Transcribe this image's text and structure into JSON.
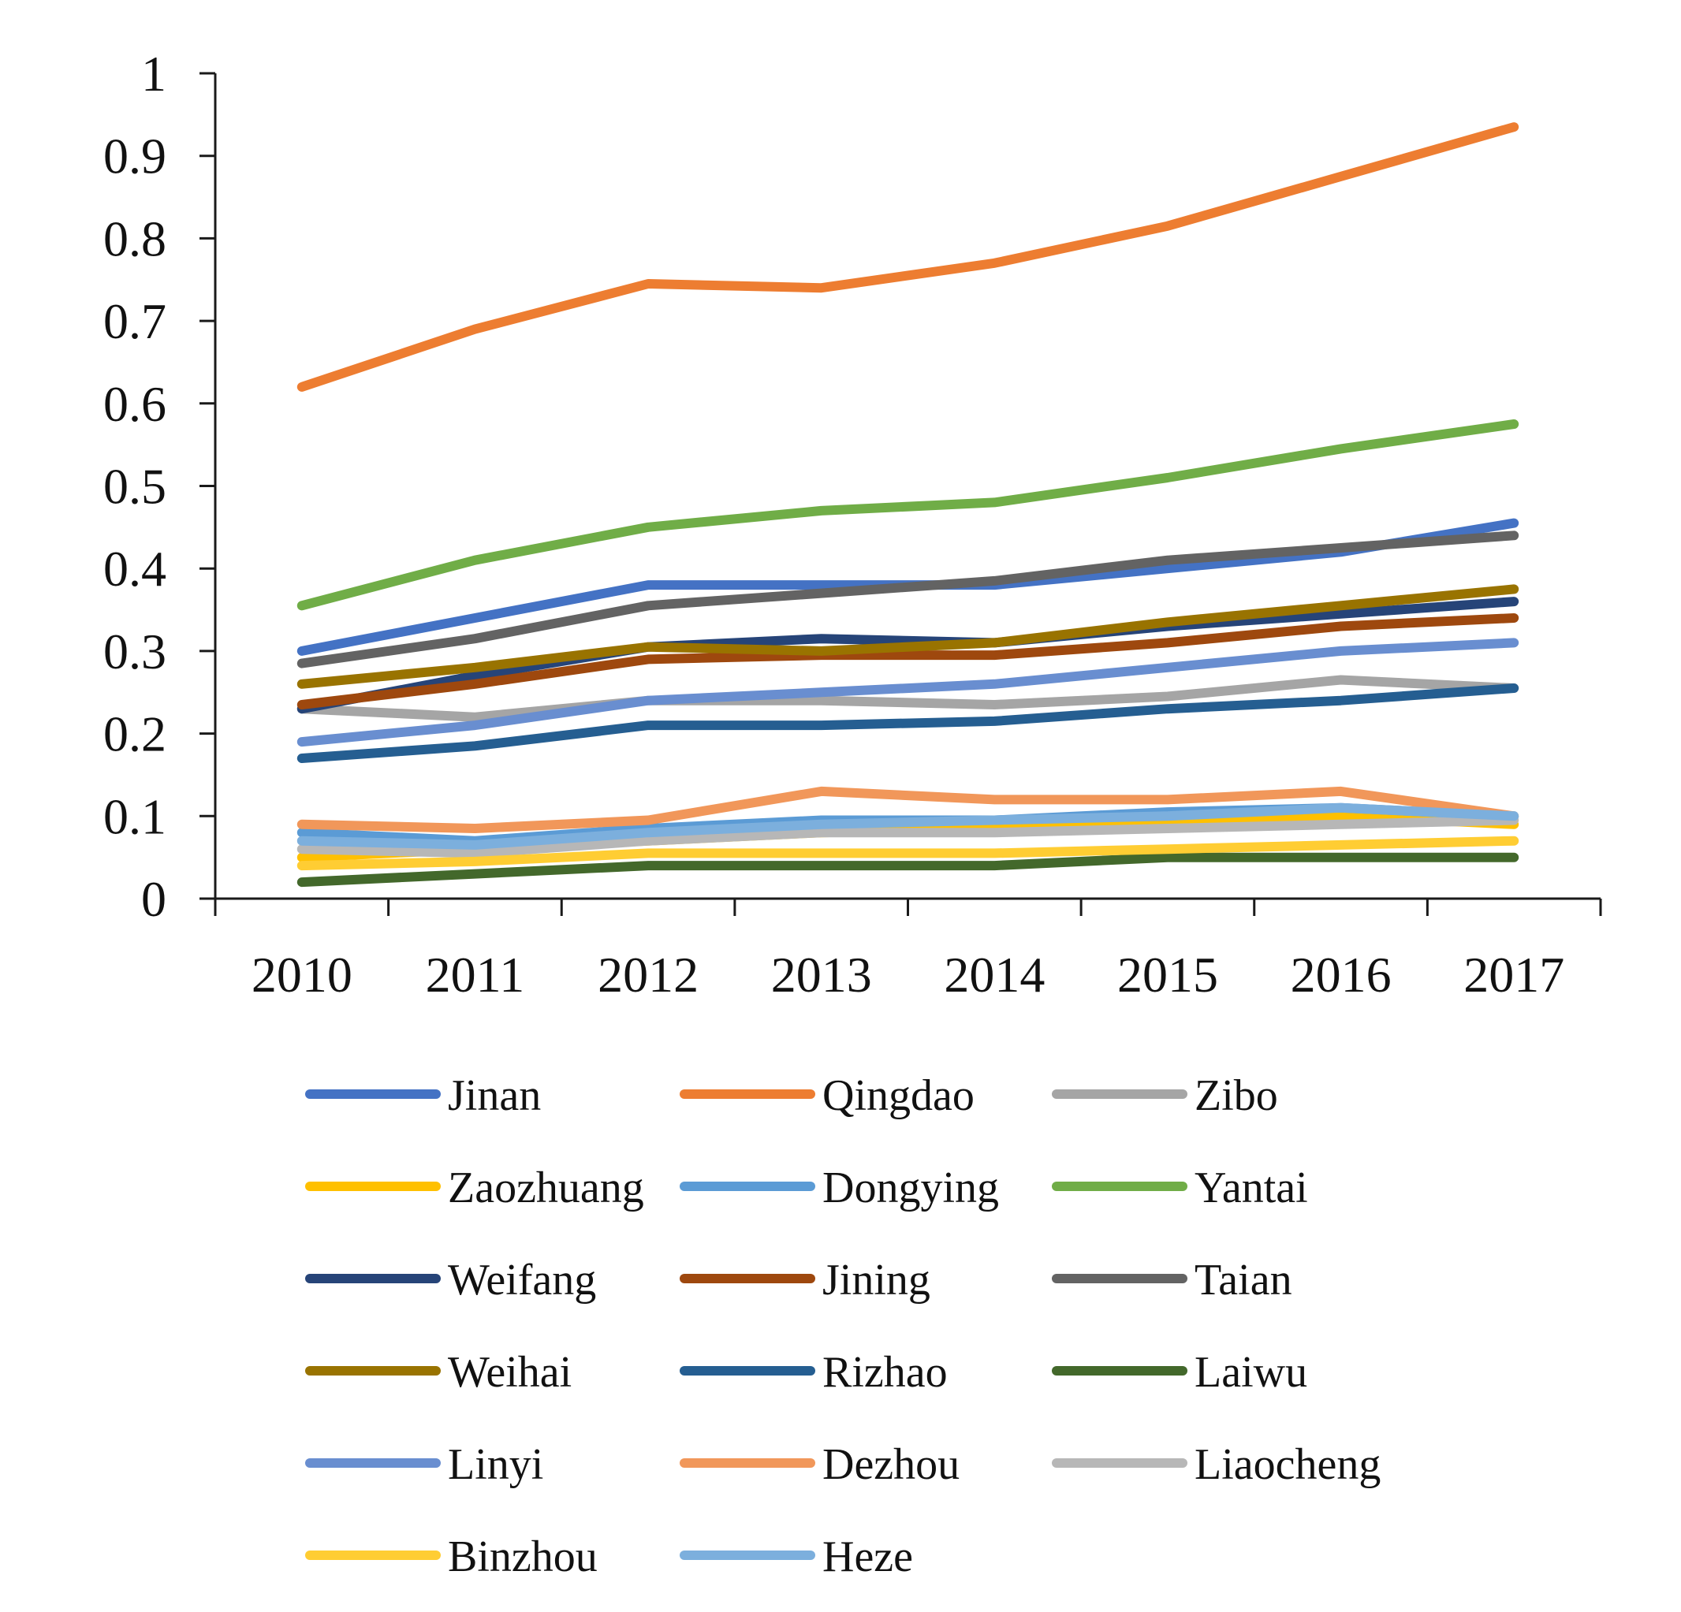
{
  "chart_data": {
    "type": "line",
    "title": "",
    "xlabel": "",
    "ylabel": "",
    "ylim": [
      0,
      1
    ],
    "yticks": [
      "0",
      "0.1",
      "0.2",
      "0.3",
      "0.4",
      "0.5",
      "0.6",
      "0.7",
      "0.8",
      "0.9",
      "1"
    ],
    "categories": [
      "2010",
      "2011",
      "2012",
      "2013",
      "2014",
      "2015",
      "2016",
      "2017"
    ],
    "grid": false,
    "legend_position": "bottom",
    "series": [
      {
        "name": "Jinan",
        "color": "#4472C4",
        "values": [
          0.3,
          0.34,
          0.38,
          0.38,
          0.38,
          0.4,
          0.42,
          0.455
        ]
      },
      {
        "name": "Qingdao",
        "color": "#ED7D31",
        "values": [
          0.62,
          0.69,
          0.745,
          0.74,
          0.77,
          0.815,
          0.875,
          0.935
        ]
      },
      {
        "name": "Zibo",
        "color": "#A5A5A5",
        "values": [
          0.23,
          0.22,
          0.24,
          0.24,
          0.235,
          0.245,
          0.265,
          0.255
        ]
      },
      {
        "name": "Zaozhuang",
        "color": "#FFC000",
        "values": [
          0.05,
          0.06,
          0.07,
          0.08,
          0.085,
          0.09,
          0.1,
          0.09
        ]
      },
      {
        "name": "Dongying",
        "color": "#5B9BD5",
        "values": [
          0.08,
          0.07,
          0.085,
          0.095,
          0.095,
          0.105,
          0.11,
          0.1
        ]
      },
      {
        "name": "Yantai",
        "color": "#70AD47",
        "values": [
          0.355,
          0.41,
          0.45,
          0.47,
          0.48,
          0.51,
          0.545,
          0.575
        ]
      },
      {
        "name": "Weifang",
        "color": "#264478",
        "values": [
          0.23,
          0.27,
          0.305,
          0.315,
          0.31,
          0.33,
          0.345,
          0.36
        ]
      },
      {
        "name": "Jining",
        "color": "#9E480E",
        "values": [
          0.235,
          0.26,
          0.29,
          0.295,
          0.295,
          0.31,
          0.33,
          0.34
        ]
      },
      {
        "name": "Taian",
        "color": "#636363",
        "values": [
          0.285,
          0.315,
          0.355,
          0.37,
          0.385,
          0.41,
          0.425,
          0.44
        ]
      },
      {
        "name": "Weihai",
        "color": "#997300",
        "values": [
          0.26,
          0.28,
          0.305,
          0.3,
          0.31,
          0.335,
          0.355,
          0.375
        ]
      },
      {
        "name": "Rizhao",
        "color": "#255E91",
        "values": [
          0.17,
          0.185,
          0.21,
          0.21,
          0.215,
          0.23,
          0.24,
          0.255
        ]
      },
      {
        "name": "Laiwu",
        "color": "#43682B",
        "values": [
          0.02,
          0.03,
          0.04,
          0.04,
          0.04,
          0.05,
          0.05,
          0.05
        ]
      },
      {
        "name": "Linyi",
        "color": "#698ED0",
        "values": [
          0.19,
          0.21,
          0.24,
          0.25,
          0.26,
          0.28,
          0.3,
          0.31
        ]
      },
      {
        "name": "Dezhou",
        "color": "#F1975A",
        "values": [
          0.09,
          0.085,
          0.095,
          0.13,
          0.12,
          0.12,
          0.13,
          0.1
        ]
      },
      {
        "name": "Liaocheng",
        "color": "#B7B7B7",
        "values": [
          0.06,
          0.055,
          0.07,
          0.08,
          0.08,
          0.085,
          0.09,
          0.095
        ]
      },
      {
        "name": "Binzhou",
        "color": "#FFCD33",
        "values": [
          0.04,
          0.045,
          0.055,
          0.055,
          0.055,
          0.06,
          0.065,
          0.07
        ]
      },
      {
        "name": "Heze",
        "color": "#7CAFDD",
        "values": [
          0.07,
          0.065,
          0.08,
          0.09,
          0.095,
          0.1,
          0.11,
          0.1
        ]
      }
    ]
  }
}
